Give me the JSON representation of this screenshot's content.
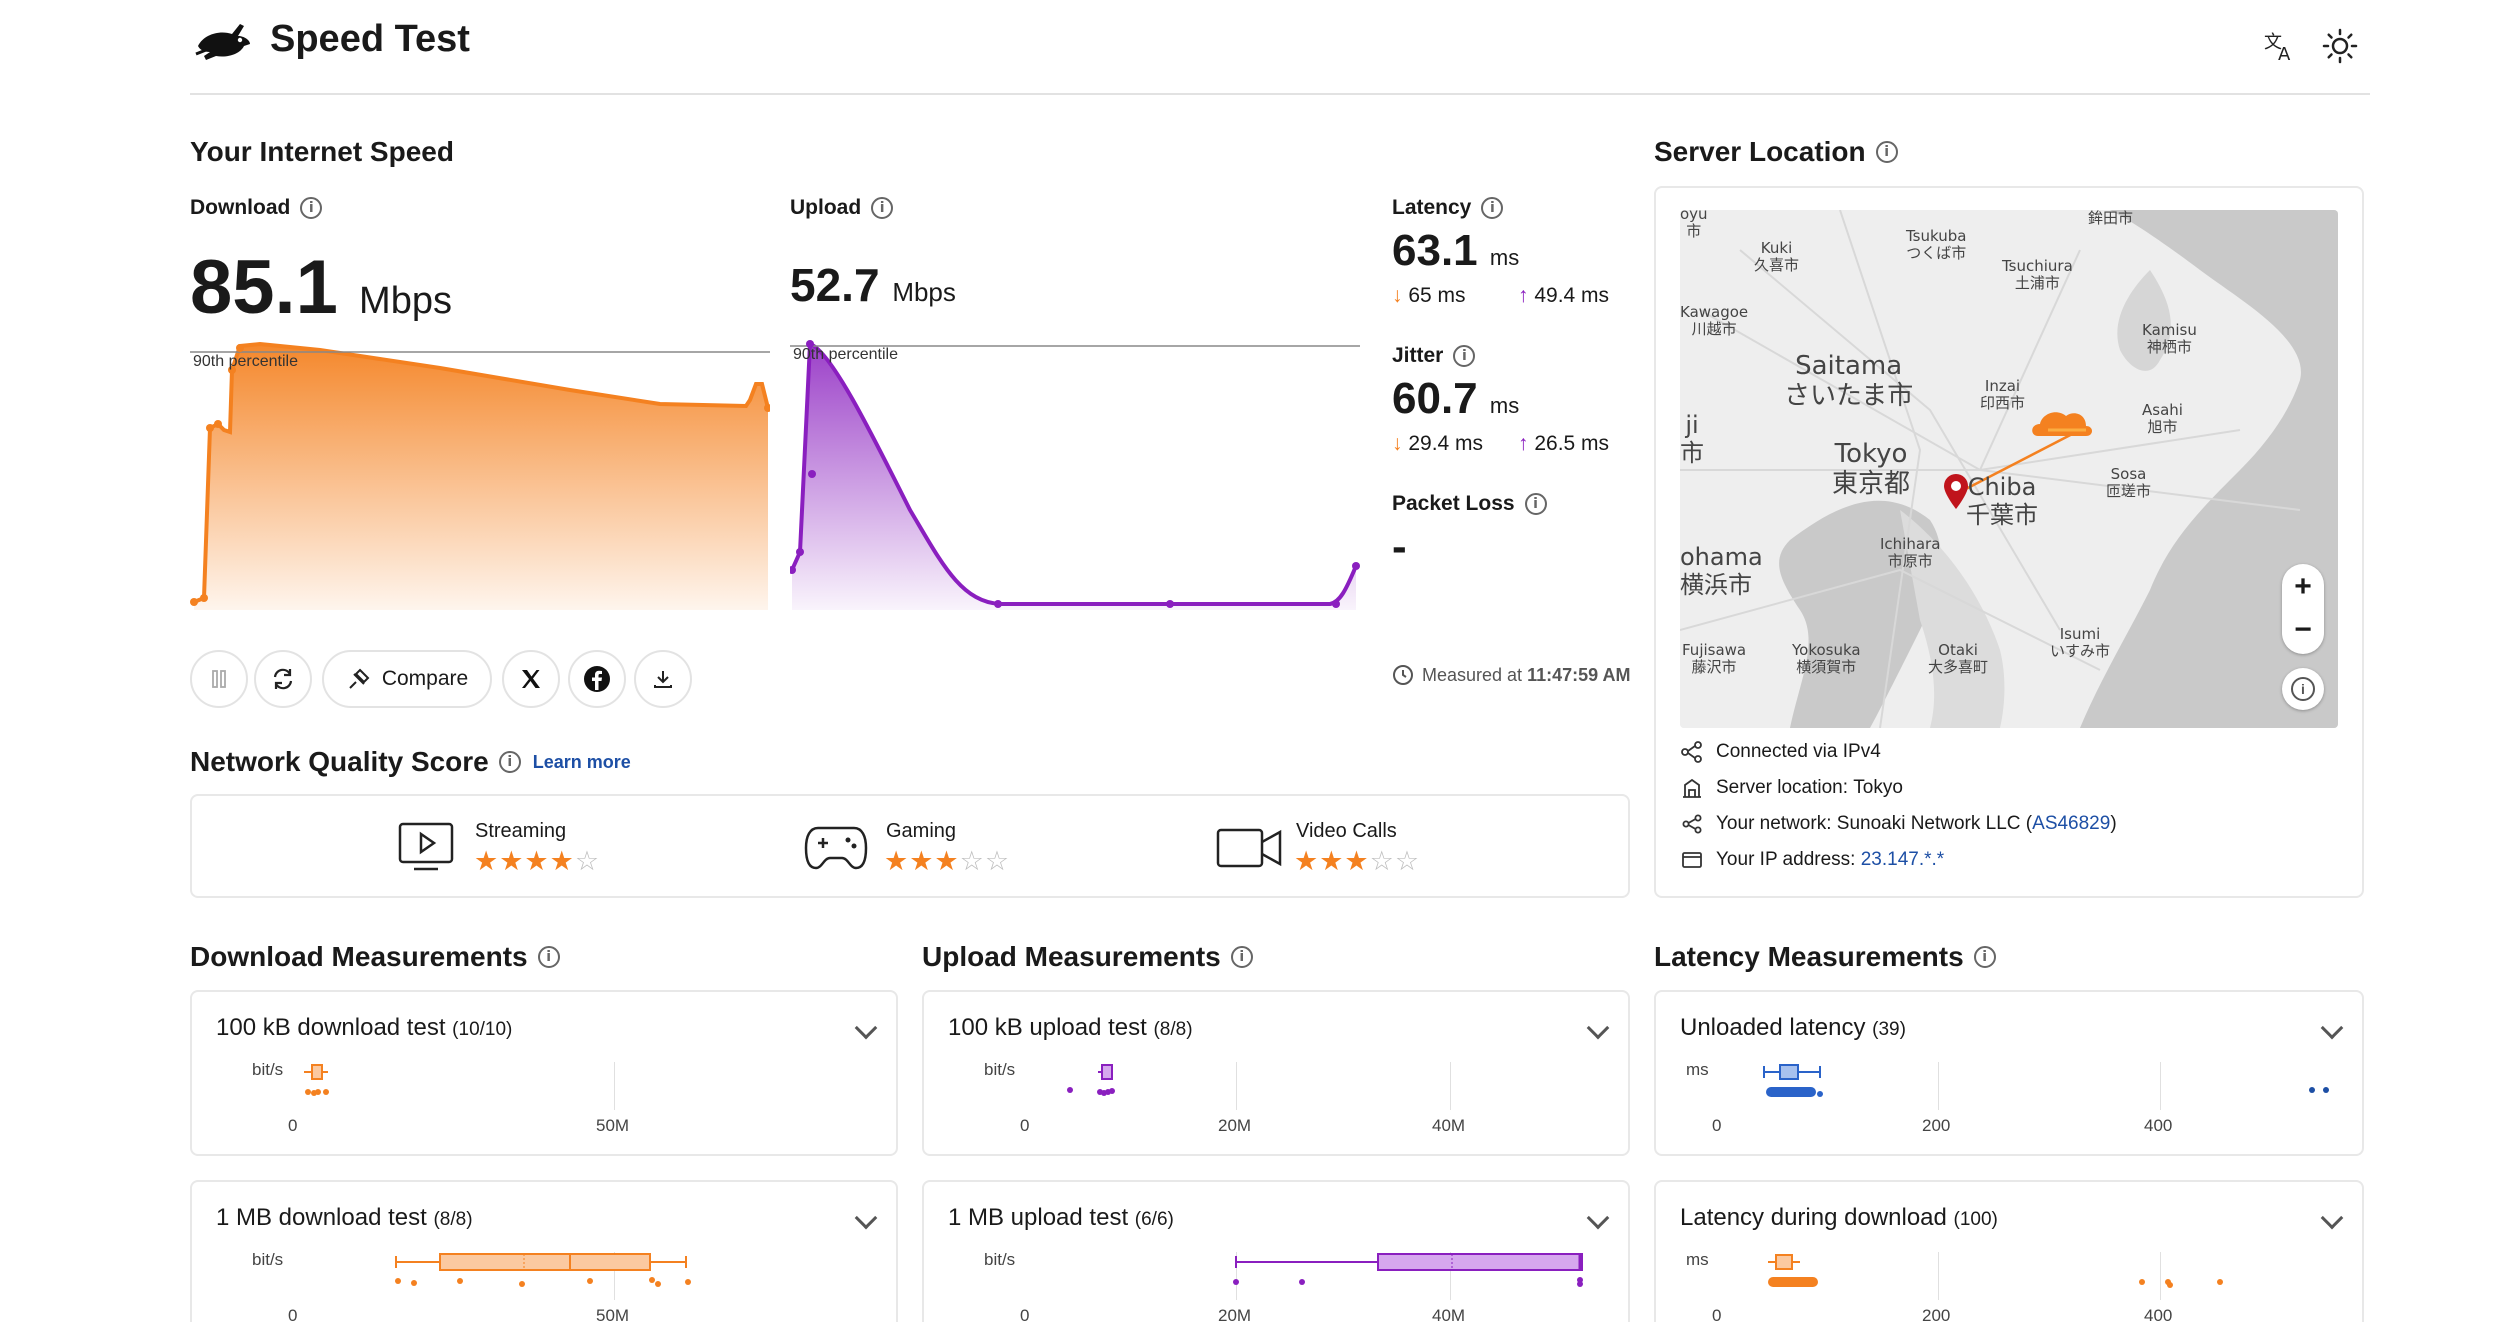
{
  "header": {
    "title": "Speed Test"
  },
  "speed": {
    "title": "Your Internet Speed",
    "download": {
      "label": "Download",
      "value": "85.1",
      "unit": "Mbps",
      "percentile_label": "90th percentile"
    },
    "upload": {
      "label": "Upload",
      "value": "52.7",
      "unit": "Mbps",
      "percentile_label": "90th percentile"
    },
    "latency": {
      "label": "Latency",
      "value": "63.1",
      "unit": "ms",
      "down": "65 ms",
      "up": "49.4 ms"
    },
    "jitter": {
      "label": "Jitter",
      "value": "60.7",
      "unit": "ms",
      "down": "29.4 ms",
      "up": "26.5 ms"
    },
    "packet_loss": {
      "label": "Packet Loss",
      "value": "-"
    },
    "arrow_down": "↓",
    "arrow_up": "↑",
    "measured_prefix": "Measured at",
    "measured_time": "11:47:59 AM"
  },
  "actions": {
    "compare_label": "Compare"
  },
  "quality": {
    "title": "Network Quality Score",
    "learn_more": "Learn more",
    "items": [
      {
        "label": "Streaming",
        "rating": 4,
        "max": 5,
        "icon": "streaming-icon"
      },
      {
        "label": "Gaming",
        "rating": 3,
        "max": 5,
        "icon": "gamepad-icon"
      },
      {
        "label": "Video Calls",
        "rating": 3,
        "max": 5,
        "icon": "video-camera-icon"
      }
    ]
  },
  "server": {
    "title": "Server Location",
    "connected_label": "Connected via",
    "connected_value": "IPv4",
    "location_label": "Server location:",
    "location_value": "Tokyo",
    "network_label": "Your network:",
    "network_value": "Sunoaki Network LLC (",
    "network_asn": "AS46829",
    "network_close": ")",
    "ip_label": "Your IP address:",
    "ip_value": "23.147.*.*",
    "map_labels": {
      "kuki": "Kuki",
      "kuki_jp": "久喜市",
      "tsukuba": "Tsukuba",
      "tsukuba_jp": "つくば市",
      "hokota_jp": "鉾田市",
      "tsuchiura": "Tsuchiura",
      "tsuchiura_jp": "土浦市",
      "kawagoe": "Kawagoe",
      "kawagoe_jp": "川越市",
      "kamisu": "Kamisu",
      "kamisu_jp": "神栖市",
      "saitama": "Saitama",
      "saitama_jp": "さいたま市",
      "inzai": "Inzai",
      "inzai_jp": "印西市",
      "asahi": "Asahi",
      "asahi_jp": "旭市",
      "tokyo": "Tokyo",
      "tokyo_jp": "東京都",
      "chiba": "Chiba",
      "chiba_jp": "千葉市",
      "sosa": "Sosa",
      "sosa_jp": "匝瑳市",
      "ichihara": "Ichihara",
      "ichihara_jp": "市原市",
      "yokohama": "ohama",
      "yokohama_jp": "横浜市",
      "fujisawa": "Fujisawa",
      "fujisawa_jp": "藤沢市",
      "yokosuka": "Yokosuka",
      "yokosuka_jp": "横須賀市",
      "otaki": "Otaki",
      "otaki_jp": "大多喜町",
      "isumi": "Isumi",
      "isumi_jp": "いすみ市",
      "edge_shi": "市",
      "edge_ji": "ji",
      "edge_shi2": "市",
      "edge_top": "oyu"
    },
    "zoom_in": "+",
    "zoom_out": "−",
    "map_info": "i"
  },
  "measurements": [
    {
      "title": "Download Measurements",
      "cards": [
        {
          "name": "100 kB download test",
          "count": "(10/10)",
          "unit": "bit/s",
          "ticks": [
            "0",
            "50M"
          ]
        },
        {
          "name": "1 MB download test",
          "count": "(8/8)",
          "unit": "bit/s",
          "ticks": [
            "0",
            "50M"
          ]
        }
      ]
    },
    {
      "title": "Upload Measurements",
      "cards": [
        {
          "name": "100 kB upload test",
          "count": "(8/8)",
          "unit": "bit/s",
          "ticks": [
            "0",
            "20M",
            "40M"
          ]
        },
        {
          "name": "1 MB upload test",
          "count": "(6/6)",
          "unit": "bit/s",
          "ticks": [
            "0",
            "20M",
            "40M"
          ]
        }
      ]
    },
    {
      "title": "Latency Measurements",
      "cards": [
        {
          "name": "Unloaded latency",
          "count": "(39)",
          "unit": "ms",
          "ticks": [
            "0",
            "200",
            "400"
          ]
        },
        {
          "name": "Latency during download",
          "count": "(100)",
          "unit": "ms",
          "ticks": [
            "0",
            "200",
            "400"
          ]
        }
      ]
    }
  ],
  "colors": {
    "download": "#f48120",
    "upload": "#8a1fbf",
    "latency": "#2a63c9",
    "accent": "#1d4fa5"
  }
}
